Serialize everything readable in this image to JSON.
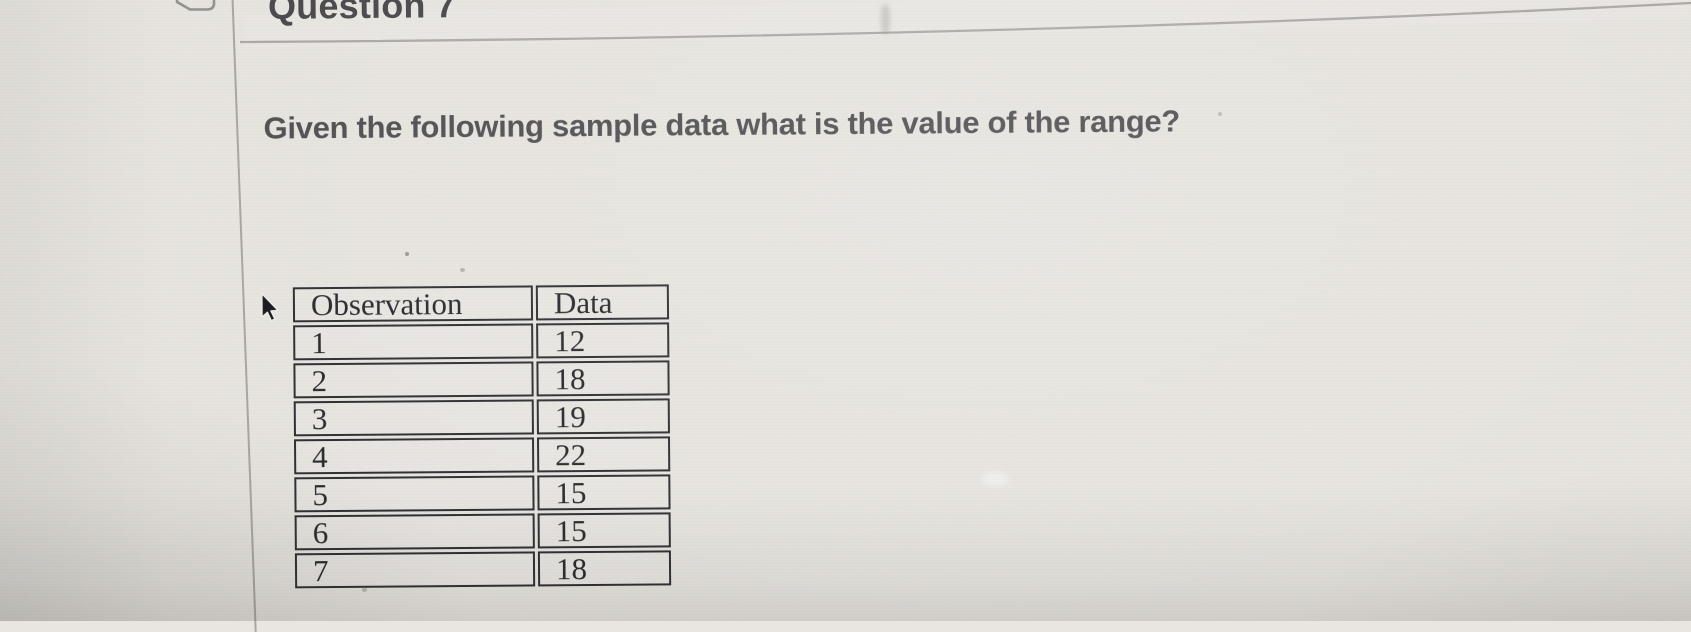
{
  "header": {
    "title": "Question 7"
  },
  "question": {
    "text": "Given the following sample data what is the value of the range?"
  },
  "table": {
    "columns": [
      "Observation",
      "Data"
    ],
    "rows": [
      [
        "1",
        "12"
      ],
      [
        "2",
        "18"
      ],
      [
        "3",
        "19"
      ],
      [
        "4",
        "22"
      ],
      [
        "5",
        "15"
      ],
      [
        "6",
        "15"
      ],
      [
        "7",
        "18"
      ]
    ]
  },
  "icons": {
    "flag": "flag-icon",
    "cursor": "arrow-cursor-icon"
  },
  "colors": {
    "background": "#e9e6e1",
    "divider": "#adaaa6",
    "table_border": "#2c2c30",
    "table_text": "#26262a",
    "question_text": "#4e4e51",
    "title_text": "#47474a"
  }
}
